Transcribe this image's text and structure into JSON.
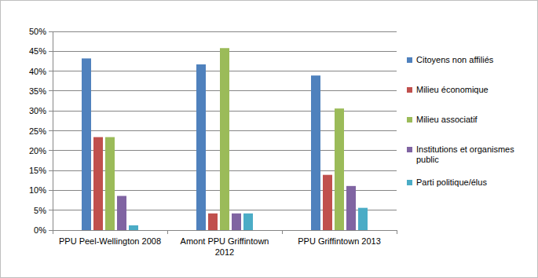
{
  "chart_data": {
    "type": "bar",
    "categories": [
      "PPU Peel-Wellington 2008",
      "Amont PPU Griffintown 2012",
      "PPU Griffintown 2013"
    ],
    "series": [
      {
        "name": "Citoyens non affiliés",
        "color": "#4f81bd",
        "values": [
          43.2,
          41.7,
          38.9
        ]
      },
      {
        "name": "Milieu économique",
        "color": "#c0504d",
        "values": [
          23.4,
          4.2,
          13.9
        ]
      },
      {
        "name": "Milieu associatif",
        "color": "#9bbb59",
        "values": [
          23.4,
          45.8,
          30.6
        ]
      },
      {
        "name": "Institutions et organismes public",
        "color": "#8064a2",
        "values": [
          8.6,
          4.2,
          11.1
        ]
      },
      {
        "name": "Parti politique/élus",
        "color": "#4bacc6",
        "values": [
          1.2,
          4.2,
          5.6
        ]
      }
    ],
    "ylim": [
      0,
      50
    ],
    "yticks": [
      {
        "value": 0,
        "label": "0%"
      },
      {
        "value": 5,
        "label": "5%"
      },
      {
        "value": 10,
        "label": "10%"
      },
      {
        "value": 15,
        "label": "15%"
      },
      {
        "value": 20,
        "label": "20%"
      },
      {
        "value": 25,
        "label": "25%"
      },
      {
        "value": 30,
        "label": "30%"
      },
      {
        "value": 35,
        "label": "35%"
      },
      {
        "value": 40,
        "label": "40%"
      },
      {
        "value": 45,
        "label": "45%"
      },
      {
        "value": 50,
        "label": "50%"
      }
    ],
    "grid": true,
    "legend": "right"
  }
}
